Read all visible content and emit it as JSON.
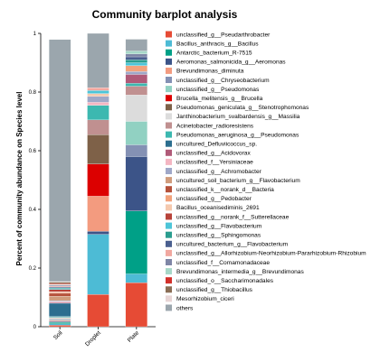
{
  "chart_data": {
    "type": "stacked_bar",
    "title": "Community barplot analysis",
    "ylabel": "Percent of community abundance on Species level",
    "xlabel": "",
    "ylim": [
      0,
      1
    ],
    "yticks": [
      0,
      0.2,
      0.4,
      0.6,
      0.8,
      1
    ],
    "categories": [
      "Soil",
      "Droplet",
      "Plate"
    ],
    "legend_position": "right",
    "series": [
      {
        "name": "unclassified_g__Pseudarthrobacter",
        "color": "#E64B35",
        "values": [
          0.005,
          0.11,
          0.15
        ]
      },
      {
        "name": "Bacillus_anthracis_g__Bacillus",
        "color": "#4DBBD5",
        "values": [
          0.005,
          0.205,
          0.03
        ]
      },
      {
        "name": "Antarctic_bacterium_R-7515",
        "color": "#00A087",
        "values": [
          0.005,
          0.0,
          0.215
        ]
      },
      {
        "name": "Aeromonas_salmonicida_g__Aeromonas",
        "color": "#3C5488",
        "values": [
          0.003,
          0.01,
          0.185
        ]
      },
      {
        "name": "Brevundimonas_diminuta",
        "color": "#F39B7F",
        "values": [
          0.003,
          0.12,
          0.0
        ]
      },
      {
        "name": "unclassified_g__Chryseobacterium",
        "color": "#8491B4",
        "values": [
          0.003,
          0.0,
          0.04
        ]
      },
      {
        "name": "unclassified_g__Pseudomonas",
        "color": "#91D1C2",
        "values": [
          0.002,
          0.0,
          0.08
        ]
      },
      {
        "name": "Brucella_melitensis_g__Brucella",
        "color": "#DC0000",
        "values": [
          0.001,
          0.11,
          0.0
        ]
      },
      {
        "name": "Pseudomonas_geniculata_g__Stenotrophomonas",
        "color": "#7E6148",
        "values": [
          0.002,
          0.1,
          0.0
        ]
      },
      {
        "name": "Janthinobacterium_svalbardensis_g__Massilia",
        "color": "#DCDCDC",
        "values": [
          0.001,
          0.0,
          0.09
        ]
      },
      {
        "name": "Acinetobacter_radioresistens",
        "color": "#C09090",
        "values": [
          0.002,
          0.05,
          0.03
        ]
      },
      {
        "name": "Pseudomonas_aeruginosa_g__Pseudomonas",
        "color": "#3CB8B0",
        "values": [
          0.003,
          0.05,
          0.01
        ]
      },
      {
        "name": "uncultured_Defluviicoccus_sp.",
        "color": "#2C6E8F",
        "values": [
          0.045,
          0.0,
          0.0
        ]
      },
      {
        "name": "unclassified_g__Acidovorax",
        "color": "#B05A78",
        "values": [
          0.003,
          0.0,
          0.03
        ]
      },
      {
        "name": "unclassified_f__Yersiniaceae",
        "color": "#F4B6C2",
        "values": [
          0.003,
          0.01,
          0.0
        ]
      },
      {
        "name": "unclassified_g__Achromobacter",
        "color": "#9FA8C8",
        "values": [
          0.003,
          0.02,
          0.01
        ]
      },
      {
        "name": "uncultured_soil_bacterium_g__Flavobacterium",
        "color": "#D09C7C",
        "values": [
          0.015,
          0.0,
          0.0
        ]
      },
      {
        "name": "unclassified_k__norank_d__Bacteria",
        "color": "#B5513A",
        "values": [
          0.01,
          0.0,
          0.0
        ]
      },
      {
        "name": "unclassified_g__Pedobacter",
        "color": "#F2A27B",
        "values": [
          0.003,
          0.0,
          0.02
        ]
      },
      {
        "name": "Bacillus_oceanisediminis_2691",
        "color": "#F5C9AE",
        "values": [
          0.002,
          0.01,
          0.0
        ]
      },
      {
        "name": "unclassified_g__norank_f__Sutterellaceae",
        "color": "#B8433A",
        "values": [
          0.008,
          0.0,
          0.0
        ]
      },
      {
        "name": "unclassified_g__Flavobacterium",
        "color": "#4DC5D8",
        "values": [
          0.003,
          0.01,
          0.01
        ]
      },
      {
        "name": "unclassified_g__Sphingomonas",
        "color": "#2A9D8F",
        "values": [
          0.003,
          0.0,
          0.01
        ]
      },
      {
        "name": "uncultured_bacterium_g__Flavobacterium",
        "color": "#4A5F8F",
        "values": [
          0.003,
          0.0,
          0.01
        ]
      },
      {
        "name": "unclassified_g__Allorhizobium-Neorhizobium-Pararhizobium-Rhizobium",
        "color": "#F1A8A0",
        "values": [
          0.003,
          0.01,
          0.0
        ]
      },
      {
        "name": "unclassified_f__Comamonadaceae",
        "color": "#7F86A6",
        "values": [
          0.003,
          0.0,
          0.01
        ]
      },
      {
        "name": "Brevundimonas_intermedia_g__Brevundimonas",
        "color": "#A7D8C8",
        "values": [
          0.002,
          0.0,
          0.01
        ]
      },
      {
        "name": "unclassified_o__Saccharimonadales",
        "color": "#D2302A",
        "values": [
          0.003,
          0.0,
          0.0
        ]
      },
      {
        "name": "unclassified_g__Thiobacillus",
        "color": "#8A6E55",
        "values": [
          0.005,
          0.0,
          0.0
        ]
      },
      {
        "name": "Mesorhizobium_ciceri",
        "color": "#E8D5D5",
        "values": [
          0.002,
          0.0,
          0.0
        ]
      },
      {
        "name": "others",
        "color": "#9BA6AD",
        "values": [
          0.825,
          0.185,
          0.04
        ]
      }
    ]
  }
}
